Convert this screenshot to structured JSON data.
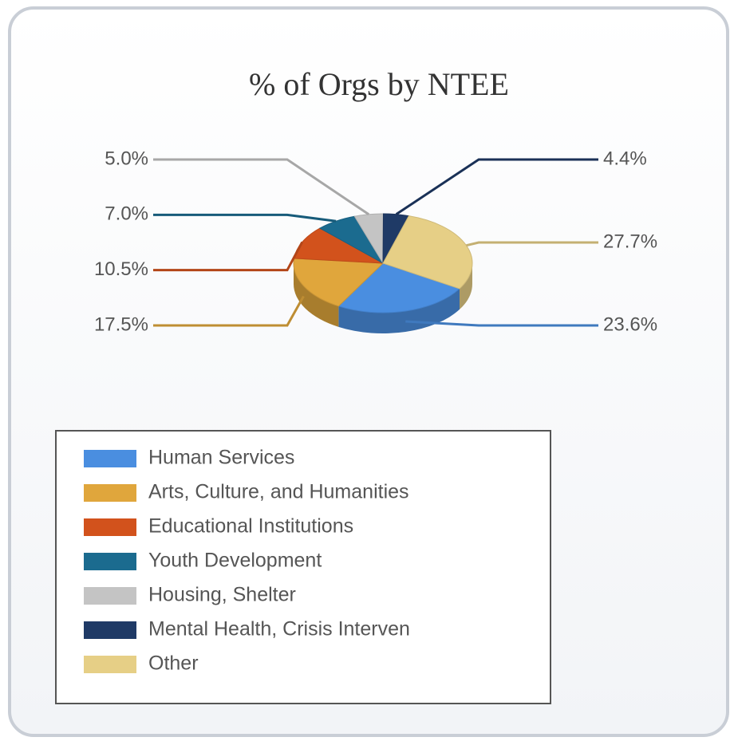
{
  "chart_data": {
    "type": "pie",
    "title": "% of Orgs by NTEE",
    "categories": [
      "Human Services",
      "Arts, Culture, and Humanities",
      "Educational Institutions",
      "Youth Development",
      "Housing, Shelter",
      "Mental Health, Crisis Interven",
      "Other"
    ],
    "values": [
      23.6,
      17.5,
      10.5,
      7.0,
      5.0,
      4.4,
      27.7
    ],
    "value_labels": [
      "23.6%",
      "17.5%",
      "10.5%",
      "7.0%",
      "5.0%",
      "4.4%",
      "27.7%"
    ],
    "colors": [
      "#4a8ee0",
      "#e0a63c",
      "#d2521c",
      "#1b6b8f",
      "#c4c4c4",
      "#1f3a66",
      "#e6cf86"
    ],
    "legend": "bottom-left"
  }
}
